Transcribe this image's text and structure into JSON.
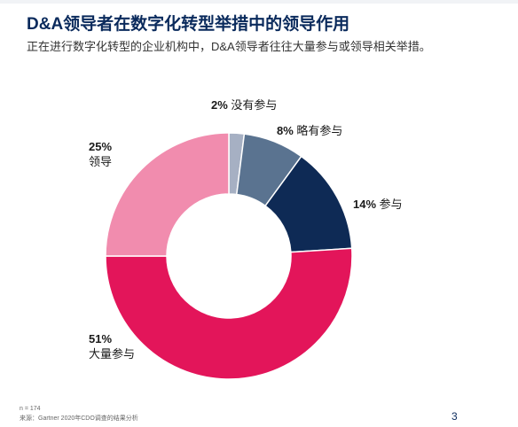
{
  "title": "D&A领导者在数字化转型举措中的领导作用",
  "subtitle": "正在进行数字化转型的企业机构中，D&A领导者往往大量参与或领导相关举措。",
  "footer": {
    "n": "n = 174",
    "source": "来源：Gartner 2020年CDO调查的结果分析",
    "page": "3"
  },
  "chart_data": {
    "type": "pie",
    "donut": true,
    "start_angle_deg": 0,
    "direction": "clockwise",
    "slices": [
      {
        "label": "没有参与",
        "pct_label": "2%",
        "value": 2,
        "color": "#a6b0c3"
      },
      {
        "label": "略有参与",
        "pct_label": "8%",
        "value": 8,
        "color": "#5a7390"
      },
      {
        "label": "参与",
        "pct_label": "14%",
        "value": 14,
        "color": "#0e2a55"
      },
      {
        "label": "大量参与",
        "pct_label": "51%",
        "value": 51,
        "color": "#e3155a"
      },
      {
        "label": "领导",
        "pct_label": "25%",
        "value": 25,
        "color": "#f18cae"
      }
    ]
  }
}
